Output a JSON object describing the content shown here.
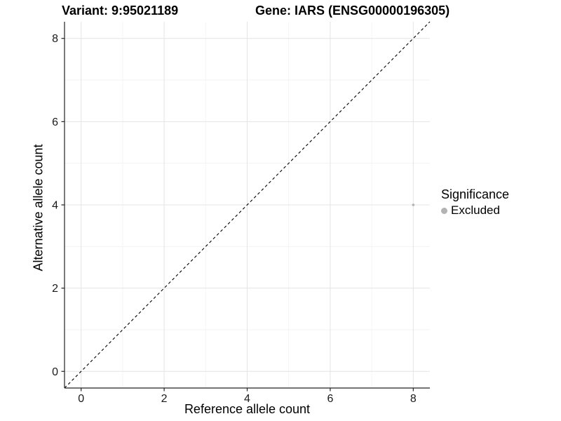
{
  "header": {
    "variant_title": "Variant: 9:95021189",
    "gene_title": "Gene: IARS (ENSG00000196305)"
  },
  "axes": {
    "x_label": "Reference allele count",
    "y_label": "Alternative allele count"
  },
  "legend": {
    "title": "Significance",
    "items": [
      {
        "label": "Excluded",
        "color": "#b3b3b3"
      }
    ]
  },
  "colors": {
    "background": "#ffffff",
    "grid_major": "#e4e4e4",
    "grid_minor": "#f1f1f1",
    "axis": "#222222",
    "tick_label": "#1a1a1a",
    "point": "#b3b3b3",
    "reference_line": "#000000"
  },
  "chart_data": {
    "type": "scatter",
    "title": "Variant: 9:95021189 | Gene: IARS (ENSG00000196305)",
    "xlabel": "Reference allele count",
    "ylabel": "Alternative allele count",
    "xlim": [
      -0.4,
      8.4
    ],
    "ylim": [
      -0.4,
      8.4
    ],
    "x_ticks": [
      0,
      2,
      4,
      6,
      8
    ],
    "y_ticks": [
      0,
      2,
      4,
      6,
      8
    ],
    "x_minor_gridlines": [
      1,
      3,
      5,
      7
    ],
    "y_minor_gridlines": [
      1,
      3,
      5,
      7
    ],
    "grid": "major and minor, light gray on white panel",
    "legend_position": "right",
    "legend_title": "Significance",
    "series": [
      {
        "name": "Excluded",
        "color": "#b3b3b3",
        "marker_size_px": 3.6,
        "points": [
          {
            "x": 8,
            "y": 4
          }
        ]
      }
    ],
    "reference_line": {
      "type": "abline",
      "slope": 1,
      "intercept": 0,
      "style": "dashed",
      "color": "#000000"
    }
  }
}
